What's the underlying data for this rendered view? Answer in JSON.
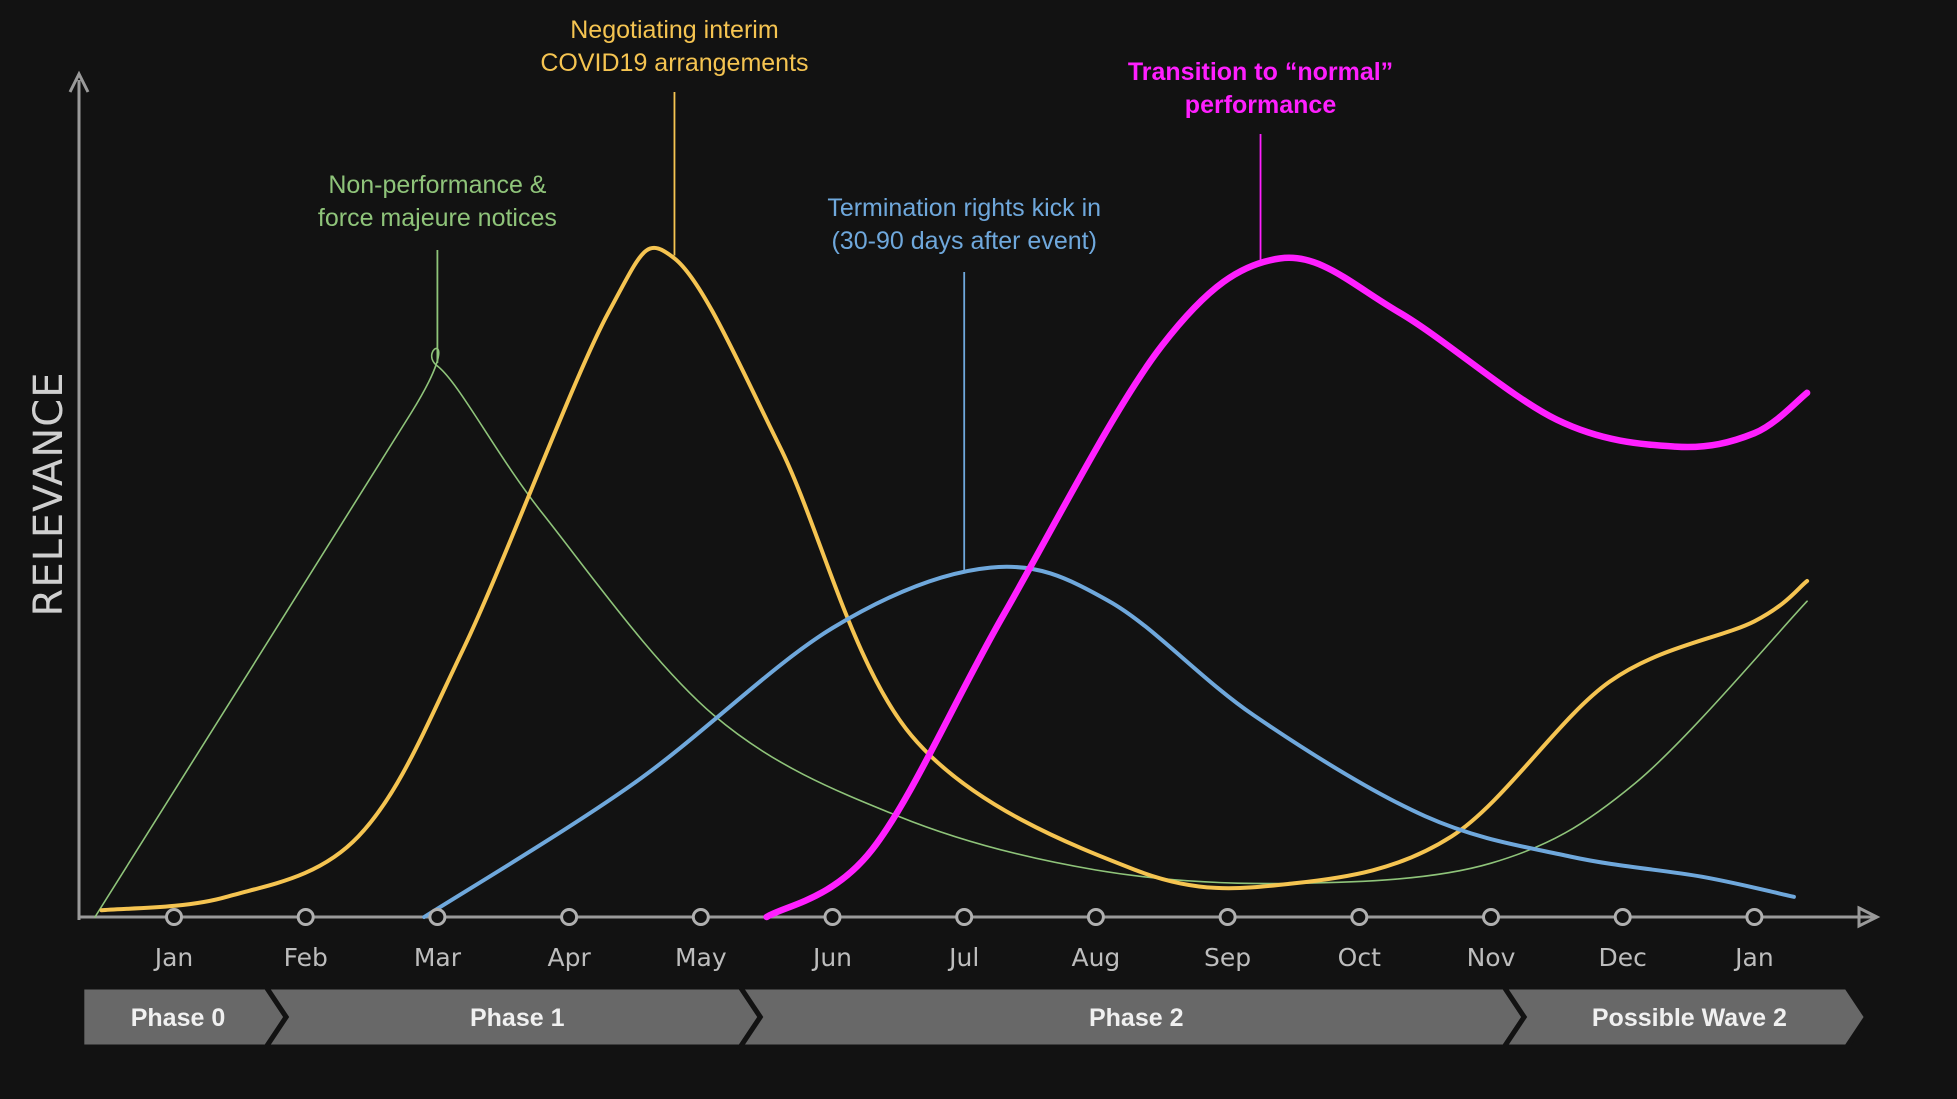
{
  "chart_data": {
    "type": "line",
    "title": "",
    "ylabel": "RELEVANCE",
    "xlabel": "",
    "ylim": [
      0,
      100
    ],
    "x": [
      "Jan",
      "Feb",
      "Mar",
      "Apr",
      "May",
      "Jun",
      "Jul",
      "Aug",
      "Sep",
      "Oct",
      "Nov",
      "Dec",
      "Jan"
    ],
    "grid": false,
    "series": [
      {
        "name": "Non-performance & force majeure notices",
        "color": "#8fc47a",
        "emphasis": "thin",
        "points": [
          [
            -0.6,
            0
          ],
          [
            1.8,
            75
          ],
          [
            2.0,
            82
          ],
          [
            2.8,
            60
          ],
          [
            4.1,
            30
          ],
          [
            5.5,
            15
          ],
          [
            7.0,
            7
          ],
          [
            8.5,
            5
          ],
          [
            10.0,
            8
          ],
          [
            11.1,
            20
          ],
          [
            12.4,
            47
          ]
        ]
      },
      {
        "name": "Negotiating interim COVID19 arrangements",
        "color": "#f5c451",
        "emphasis": "medium",
        "points": [
          [
            -0.55,
            1
          ],
          [
            0.4,
            3
          ],
          [
            1.4,
            12
          ],
          [
            2.2,
            40
          ],
          [
            3.3,
            90
          ],
          [
            3.8,
            98
          ],
          [
            4.6,
            70
          ],
          [
            5.6,
            27
          ],
          [
            7.3,
            7
          ],
          [
            8.5,
            5
          ],
          [
            9.7,
            12
          ],
          [
            10.9,
            35
          ],
          [
            12.0,
            44
          ],
          [
            12.4,
            50
          ]
        ]
      },
      {
        "name": "Termination rights kick in (30-90 days after event)",
        "color": "#6fa8dc",
        "emphasis": "medium",
        "points": [
          [
            1.9,
            0
          ],
          [
            3.5,
            20
          ],
          [
            5.0,
            43
          ],
          [
            6.2,
            52
          ],
          [
            7.1,
            47
          ],
          [
            8.2,
            30
          ],
          [
            9.5,
            15
          ],
          [
            10.6,
            9
          ],
          [
            11.6,
            6
          ],
          [
            12.3,
            3
          ]
        ]
      },
      {
        "name": "Transition to “normal” performance",
        "color": "#ff1fff",
        "emphasis": "thick",
        "points": [
          [
            4.5,
            0
          ],
          [
            5.3,
            10
          ],
          [
            6.3,
            45
          ],
          [
            7.5,
            85
          ],
          [
            8.4,
            98
          ],
          [
            9.3,
            90
          ],
          [
            10.5,
            74
          ],
          [
            11.4,
            70
          ],
          [
            12.0,
            72
          ],
          [
            12.4,
            78
          ]
        ]
      }
    ],
    "annotations": [
      {
        "series": 0,
        "lines": [
          "Non-performance &",
          "force majeure notices"
        ],
        "x": 2.0,
        "y": 82
      },
      {
        "series": 1,
        "lines": [
          "Negotiating interim",
          "COVID19 arrangements"
        ],
        "x": 3.8,
        "y": 98
      },
      {
        "series": 2,
        "lines": [
          "Termination rights kick in",
          "(30-90 days after event)"
        ],
        "x": 6.0,
        "y": 51
      },
      {
        "series": 3,
        "lines": [
          "Transition to “normal”",
          "performance"
        ],
        "x": 8.25,
        "y": 97
      }
    ],
    "phases": [
      {
        "label": "Phase 0",
        "start": -0.7,
        "end": 0.7
      },
      {
        "label": "Phase 1",
        "start": 0.7,
        "end": 4.3
      },
      {
        "label": "Phase 2",
        "start": 4.3,
        "end": 10.1
      },
      {
        "label": "Possible Wave 2",
        "start": 10.1,
        "end": 12.7
      }
    ]
  }
}
